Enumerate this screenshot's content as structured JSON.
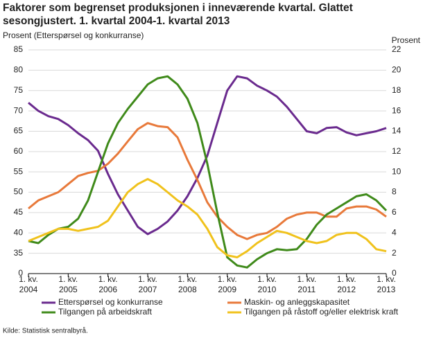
{
  "chart_data": {
    "type": "line",
    "title": [
      "Faktorer som begrenset produksjonen i inneværende kvartal. Glattet",
      "sesongjustert. 1. kvartal 2004-1. kvartal 2013"
    ],
    "y_label": "Prosent (Etterspørsel og konkurranse)",
    "y2_label": "Prosent",
    "x_period_label": "1. kv.",
    "categories": [
      "2004",
      null,
      null,
      null,
      "2005",
      null,
      null,
      null,
      "2006",
      null,
      null,
      null,
      "2007",
      null,
      null,
      null,
      "2008",
      null,
      null,
      null,
      "2009",
      null,
      null,
      null,
      "2010",
      null,
      null,
      null,
      "2011",
      null,
      null,
      null,
      "2012",
      null,
      null,
      null,
      "2013"
    ],
    "ylim": [
      30,
      85
    ],
    "yticks": [
      {
        "value": 30,
        "label": "0"
      },
      35,
      40,
      45,
      50,
      55,
      60,
      65,
      70,
      75,
      80,
      85
    ],
    "y2lim": [
      0,
      22
    ],
    "y2ticks": [
      0,
      2,
      4,
      6,
      8,
      10,
      12,
      14,
      16,
      18,
      20,
      22
    ],
    "grid": true,
    "series": [
      {
        "name": "Etterspørsel og konkurranse",
        "color": "#6a2a8e",
        "axis": "y",
        "values": [
          72,
          70,
          68.7,
          68,
          66.5,
          64.5,
          62.8,
          60.2,
          54.5,
          49.5,
          45.5,
          41.5,
          39.7,
          41,
          42.8,
          45.5,
          49,
          53.5,
          59,
          67,
          75,
          78.5,
          78,
          76.2,
          75,
          73.5,
          71,
          68,
          65,
          64.5,
          65.8,
          66,
          64.7,
          64,
          64.5,
          65,
          65.8
        ]
      },
      {
        "name": "Maskin- og anleggskapasitet",
        "color": "#e8793a",
        "axis": "y2",
        "values": [
          6.4,
          7.2,
          7.6,
          8,
          8.8,
          9.6,
          9.9,
          10.1,
          10.8,
          11.8,
          13,
          14.2,
          14.8,
          14.5,
          14.4,
          13.4,
          11.2,
          9.2,
          7,
          5.6,
          4.6,
          3.8,
          3.4,
          3.8,
          4,
          4.6,
          5.4,
          5.8,
          6,
          6,
          5.6,
          5.6,
          6.4,
          6.6,
          6.6,
          6.3,
          5.6
        ]
      },
      {
        "name": "Tilgangen på arbeidskraft",
        "color": "#3f8a1a",
        "axis": "y2",
        "values": [
          3.2,
          3,
          3.8,
          4.4,
          4.6,
          5.4,
          7.2,
          10,
          12.8,
          14.8,
          16.2,
          17.4,
          18.6,
          19.2,
          19.4,
          18.6,
          17.2,
          14.8,
          10.8,
          6,
          1.6,
          0.8,
          0.6,
          1.4,
          2,
          2.4,
          2.3,
          2.4,
          3.4,
          4.8,
          5.8,
          6.4,
          7,
          7.6,
          7.8,
          7.2,
          6.2
        ]
      },
      {
        "name": "Tilgangen på råstoff og/eller elektrisk kraft",
        "color": "#f0c21c",
        "axis": "y2",
        "values": [
          3.2,
          3.6,
          4,
          4.4,
          4.4,
          4.2,
          4.4,
          4.6,
          5.2,
          6.6,
          8,
          8.8,
          9.3,
          8.8,
          8,
          7.2,
          6.6,
          5.8,
          4.4,
          2.6,
          1.8,
          1.6,
          2.2,
          3,
          3.6,
          4.2,
          4,
          3.6,
          3.2,
          3,
          3.2,
          3.8,
          4,
          4,
          3.4,
          2.4,
          2.2
        ]
      }
    ],
    "source": "Kilde: Statistisk sentralbyrå."
  }
}
